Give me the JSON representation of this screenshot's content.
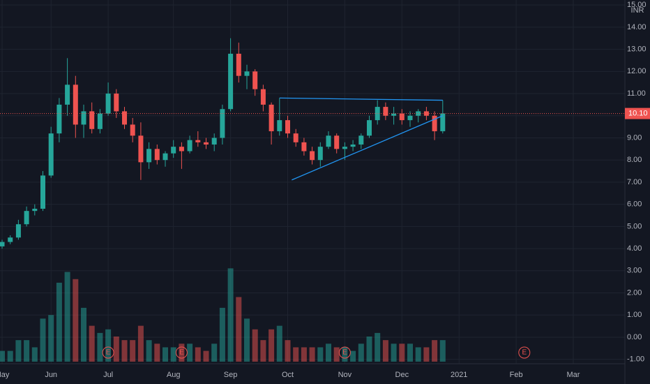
{
  "chart_data": {
    "type": "candlestick",
    "currency": "INR",
    "categories": [
      "May",
      null,
      null,
      null,
      null,
      null,
      "Jun",
      null,
      null,
      null,
      null,
      null,
      null,
      "Jul",
      null,
      null,
      null,
      null,
      null,
      null,
      null,
      "Aug",
      null,
      null,
      null,
      null,
      null,
      null,
      "Sep",
      null,
      null,
      null,
      null,
      null,
      null,
      "Oct",
      null,
      null,
      null,
      null,
      null,
      null,
      "Nov",
      null,
      null,
      null,
      null,
      null,
      null,
      "Dec",
      null,
      null,
      null,
      null,
      null,
      null,
      "2021",
      null,
      null,
      null,
      null,
      null,
      null,
      "Feb",
      null,
      null,
      null,
      null,
      null,
      null,
      "Mar",
      null,
      null,
      null,
      null,
      null,
      null
    ],
    "ohlc": [
      [
        4.1,
        4.4,
        4.0,
        4.3
      ],
      [
        4.3,
        4.6,
        4.2,
        4.5
      ],
      [
        4.5,
        5.3,
        4.4,
        5.1
      ],
      [
        5.1,
        5.9,
        5.0,
        5.7
      ],
      [
        5.7,
        6.0,
        5.5,
        5.8
      ],
      [
        5.8,
        7.5,
        5.7,
        7.3
      ],
      [
        7.3,
        9.5,
        7.2,
        9.2
      ],
      [
        9.2,
        10.8,
        8.8,
        10.5
      ],
      [
        10.5,
        12.6,
        10.0,
        11.4
      ],
      [
        11.4,
        11.8,
        9.0,
        9.6
      ],
      [
        9.6,
        10.5,
        9.0,
        10.2
      ],
      [
        10.2,
        10.6,
        9.2,
        9.4
      ],
      [
        9.4,
        10.3,
        9.2,
        10.1
      ],
      [
        10.1,
        11.5,
        10.0,
        11.0
      ],
      [
        11.0,
        11.2,
        9.9,
        10.2
      ],
      [
        10.2,
        10.4,
        9.4,
        9.6
      ],
      [
        9.6,
        9.9,
        8.8,
        9.1
      ],
      [
        9.1,
        9.7,
        7.1,
        7.9
      ],
      [
        7.9,
        8.8,
        7.6,
        8.5
      ],
      [
        8.5,
        8.7,
        7.8,
        8.0
      ],
      [
        8.0,
        8.4,
        7.7,
        8.3
      ],
      [
        8.3,
        8.9,
        8.1,
        8.6
      ],
      [
        8.6,
        8.8,
        7.6,
        8.4
      ],
      [
        8.4,
        9.1,
        8.3,
        8.9
      ],
      [
        8.9,
        9.3,
        8.6,
        8.8
      ],
      [
        8.8,
        9.0,
        8.5,
        8.7
      ],
      [
        8.7,
        9.2,
        8.4,
        9.0
      ],
      [
        9.0,
        10.5,
        8.7,
        10.3
      ],
      [
        10.3,
        13.5,
        10.2,
        12.8
      ],
      [
        12.8,
        13.3,
        11.5,
        11.8
      ],
      [
        11.8,
        12.3,
        11.2,
        12.0
      ],
      [
        12.0,
        12.1,
        10.9,
        11.2
      ],
      [
        11.2,
        11.4,
        10.2,
        10.5
      ],
      [
        10.5,
        10.6,
        8.7,
        9.3
      ],
      [
        9.3,
        10.8,
        9.1,
        9.8
      ],
      [
        9.8,
        10.0,
        9.0,
        9.2
      ],
      [
        9.2,
        9.4,
        8.6,
        8.8
      ],
      [
        8.8,
        9.0,
        8.2,
        8.4
      ],
      [
        8.4,
        8.6,
        7.8,
        8.0
      ],
      [
        8.0,
        8.8,
        7.7,
        8.6
      ],
      [
        8.6,
        9.3,
        8.5,
        9.1
      ],
      [
        9.1,
        9.2,
        8.3,
        8.5
      ],
      [
        8.5,
        8.8,
        8.0,
        8.6
      ],
      [
        8.6,
        8.9,
        8.4,
        8.7
      ],
      [
        8.7,
        9.2,
        8.5,
        9.1
      ],
      [
        9.1,
        10.0,
        9.0,
        9.8
      ],
      [
        9.8,
        10.7,
        9.6,
        10.4
      ],
      [
        10.4,
        10.6,
        9.8,
        10.0
      ],
      [
        10.0,
        10.4,
        9.6,
        10.1
      ],
      [
        10.1,
        10.3,
        9.6,
        9.8
      ],
      [
        9.8,
        10.2,
        9.5,
        10.0
      ],
      [
        10.0,
        10.3,
        9.7,
        10.2
      ],
      [
        10.2,
        10.4,
        9.8,
        10.0
      ],
      [
        10.0,
        10.2,
        8.9,
        9.3
      ],
      [
        9.3,
        10.7,
        9.2,
        10.1
      ],
      null,
      null,
      null,
      null,
      null,
      null,
      null,
      null,
      null,
      null,
      null,
      null,
      null,
      null,
      null,
      null,
      null,
      null,
      null,
      null,
      null,
      null
    ],
    "volume": [
      0.3,
      0.3,
      0.6,
      0.6,
      0.4,
      1.2,
      1.3,
      2.2,
      2.5,
      2.3,
      1.5,
      1.0,
      0.8,
      0.9,
      0.7,
      0.6,
      0.6,
      1.0,
      0.6,
      0.5,
      0.4,
      0.4,
      0.5,
      0.5,
      0.4,
      0.3,
      0.5,
      1.5,
      2.6,
      1.8,
      1.2,
      0.9,
      0.6,
      0.9,
      1.0,
      0.6,
      0.4,
      0.4,
      0.4,
      0.4,
      0.5,
      0.4,
      0.4,
      0.3,
      0.5,
      0.7,
      0.8,
      0.6,
      0.5,
      0.5,
      0.5,
      0.4,
      0.4,
      0.6,
      0.6,
      null,
      null,
      null,
      null,
      null,
      null,
      null,
      null,
      null,
      null,
      null,
      null,
      null,
      null,
      null,
      null,
      null,
      null,
      null,
      null,
      null,
      null
    ],
    "up_color": "#26a69a",
    "down_color": "#ef5350",
    "last_price": {
      "value": 10.1,
      "label": "10.10"
    },
    "ylim": [
      -1.2,
      15.1
    ],
    "yticks": [
      {
        "value": -1,
        "label": "-1.00"
      },
      {
        "value": 0,
        "label": "0.00"
      },
      {
        "value": 1,
        "label": "1.00"
      },
      {
        "value": 2,
        "label": "2.00"
      },
      {
        "value": 3,
        "label": "3.00"
      },
      {
        "value": 4,
        "label": "4.00"
      },
      {
        "value": 5,
        "label": "5.00"
      },
      {
        "value": 6,
        "label": "6.00"
      },
      {
        "value": 7,
        "label": "7.00"
      },
      {
        "value": 8,
        "label": "8.00"
      },
      {
        "value": 9,
        "label": "9.00"
      },
      {
        "value": 10,
        "label": "10.00"
      },
      {
        "value": 11,
        "label": "11.00"
      },
      {
        "value": 12,
        "label": "12.00"
      },
      {
        "value": 13,
        "label": "13.00"
      },
      {
        "value": 14,
        "label": "14.00"
      },
      {
        "value": 15,
        "label": "15.00"
      }
    ],
    "y2lim": [
      0,
      10
    ],
    "trendlines": [
      {
        "color": "#2196f3",
        "x": [
          34,
          54
        ],
        "y": [
          10.8,
          10.7
        ]
      },
      {
        "color": "#2196f3",
        "x": [
          35.5,
          54
        ],
        "y": [
          7.1,
          10.0
        ]
      }
    ],
    "earnings": {
      "label": "E",
      "x": [
        13,
        22,
        42,
        64
      ]
    },
    "grid": true
  }
}
